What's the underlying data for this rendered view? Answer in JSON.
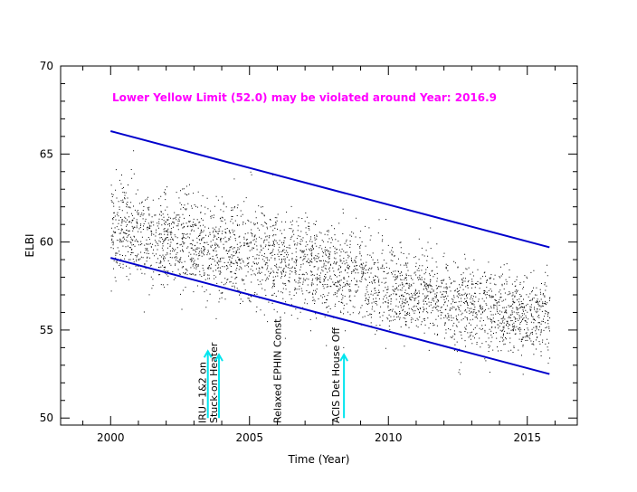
{
  "colors": {
    "points": "#000000",
    "trend": "#0000cc",
    "warning": "#ff00ff",
    "arrow": "#00e5ee",
    "axis": "#000000",
    "background": "#ffffff"
  },
  "chart_data": {
    "type": "scatter",
    "title": "",
    "xlabel": "Time (Year)",
    "ylabel": "ELBI",
    "xlim": [
      1998.2,
      2016.8
    ],
    "ylim": [
      49.6,
      70
    ],
    "x_ticks": [
      2000,
      2005,
      2010,
      2015
    ],
    "y_ticks": [
      50,
      55,
      60,
      65,
      70
    ],
    "grid": false,
    "warning_text": "Lower Yellow  Limit (52.0) may be violated around Year: 2016.9",
    "trend_lines": [
      {
        "name": "upper",
        "x": [
          2000.0,
          2015.8
        ],
        "y": [
          66.3,
          59.7
        ]
      },
      {
        "name": "lower",
        "x": [
          2000.0,
          2015.8
        ],
        "y": [
          59.1,
          52.5
        ]
      }
    ],
    "scatter_envelope": [
      {
        "x": 2000,
        "y_min": 57.0,
        "y_max": 64.5
      },
      {
        "x": 2001,
        "y_min": 56.8,
        "y_max": 64.3
      },
      {
        "x": 2002,
        "y_min": 56.5,
        "y_max": 64.0
      },
      {
        "x": 2003,
        "y_min": 56.2,
        "y_max": 63.8
      },
      {
        "x": 2004,
        "y_min": 55.8,
        "y_max": 63.3
      },
      {
        "x": 2005,
        "y_min": 55.5,
        "y_max": 63.0
      },
      {
        "x": 2006,
        "y_min": 55.3,
        "y_max": 62.8
      },
      {
        "x": 2007,
        "y_min": 55.0,
        "y_max": 62.5
      },
      {
        "x": 2008,
        "y_min": 54.8,
        "y_max": 62.0
      },
      {
        "x": 2009,
        "y_min": 54.5,
        "y_max": 61.5
      },
      {
        "x": 2010,
        "y_min": 54.0,
        "y_max": 60.8
      },
      {
        "x": 2011,
        "y_min": 53.8,
        "y_max": 60.5
      },
      {
        "x": 2012,
        "y_min": 53.5,
        "y_max": 60.0
      },
      {
        "x": 2013,
        "y_min": 53.2,
        "y_max": 59.5
      },
      {
        "x": 2014,
        "y_min": 53.0,
        "y_max": 59.3
      },
      {
        "x": 2015,
        "y_min": 52.8,
        "y_max": 59.0
      },
      {
        "x": 2015.8,
        "y_min": 52.7,
        "y_max": 58.8
      }
    ],
    "annotations": [
      {
        "x": 2003.3,
        "text": "IRU−1&2 on"
      },
      {
        "x": 2003.7,
        "text": "Stuck-on Heater"
      },
      {
        "x": 2006.0,
        "text": "Relaxed EPHIN Const."
      },
      {
        "x": 2008.1,
        "text": "ACIS Det House Off"
      }
    ],
    "arrows": [
      {
        "x": 2003.5,
        "y_from": 50.0,
        "y_to": 53.8
      },
      {
        "x": 2003.9,
        "y_from": 50.0,
        "y_to": 53.6
      },
      {
        "x": 2008.4,
        "y_from": 50.0,
        "y_to": 53.6
      }
    ]
  }
}
